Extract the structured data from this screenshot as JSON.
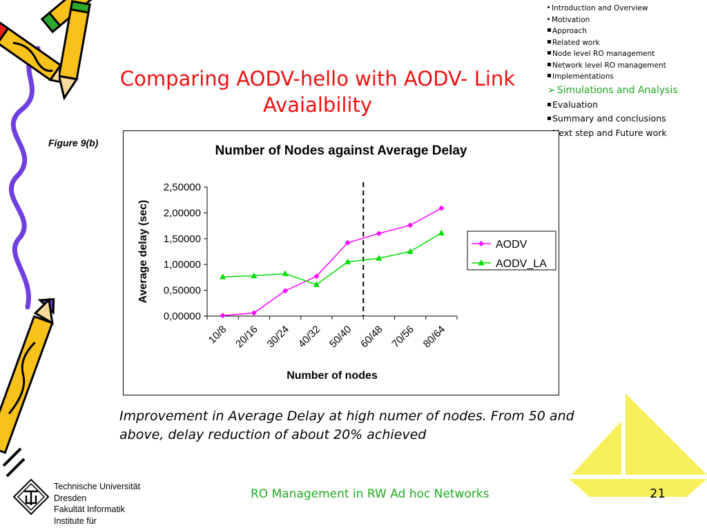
{
  "slide": {
    "title": "Comparing AODV-hello with AODV- Link Avaialbility",
    "figure_label": "Figure 9(b)",
    "caption": "Improvement in Average Delay at high numer of nodes. From 50 and above, delay reduction of about 20% achieved",
    "footer_title": "RO Management in RW Ad hoc Networks",
    "page_number": "21"
  },
  "outline": {
    "items": [
      {
        "label": "Introduction and Overview",
        "style": "dot"
      },
      {
        "label": "Motivation",
        "style": "dot"
      },
      {
        "label": "Approach",
        "style": "small"
      },
      {
        "label": "Related work",
        "style": "small"
      },
      {
        "label": "Node level RO management",
        "style": "small"
      },
      {
        "label": "Network level RO management",
        "style": "small"
      },
      {
        "label": "Implementations",
        "style": "small"
      },
      {
        "label": "Simulations and Analysis",
        "style": "active"
      },
      {
        "label": "Evaluation",
        "style": "big"
      },
      {
        "label": "Summary and conclusions",
        "style": "big"
      },
      {
        "label": "Next step and Future work",
        "style": "big"
      }
    ],
    "active_arrow": "➢"
  },
  "university": {
    "lines": [
      "Technische Universität",
      "Dresden",
      "Fakultät Informatik",
      "Institute für"
    ]
  },
  "colors": {
    "title": "#ee1111",
    "accent": "#1fa81f",
    "aodv": "#ff00ff",
    "aodv_la": "#00dd00",
    "sail": "#f7f05a"
  },
  "icons": [
    "pencil-icon",
    "pencil-icon",
    "pencil-icon",
    "sailboat-icon",
    "university-logo-icon",
    "squiggle-line-icon"
  ],
  "chart_data": {
    "type": "line",
    "title": "Number of Nodes against Average Delay",
    "xlabel": "Number of nodes",
    "ylabel": "Average delay (sec)",
    "categories": [
      "10/8",
      "20/16",
      "30/24",
      "40/32",
      "50/40",
      "60/48",
      "70/56",
      "80/64"
    ],
    "y_ticks": [
      "0,00000",
      "0,50000",
      "1,00000",
      "1,50000",
      "2,00000",
      "2,50000"
    ],
    "ylim": [
      0,
      2.5
    ],
    "grid": false,
    "legend_position": "right",
    "series": [
      {
        "name": "AODV",
        "marker": "diamond",
        "values": [
          0.01,
          0.06,
          0.49,
          0.77,
          1.42,
          1.6,
          1.76,
          2.09
        ]
      },
      {
        "name": "AODV_LA",
        "marker": "triangle",
        "values": [
          0.76,
          0.78,
          0.82,
          0.61,
          1.05,
          1.12,
          1.25,
          1.61
        ]
      }
    ],
    "divider_between_categories": [
      "50/40",
      "60/48"
    ]
  }
}
